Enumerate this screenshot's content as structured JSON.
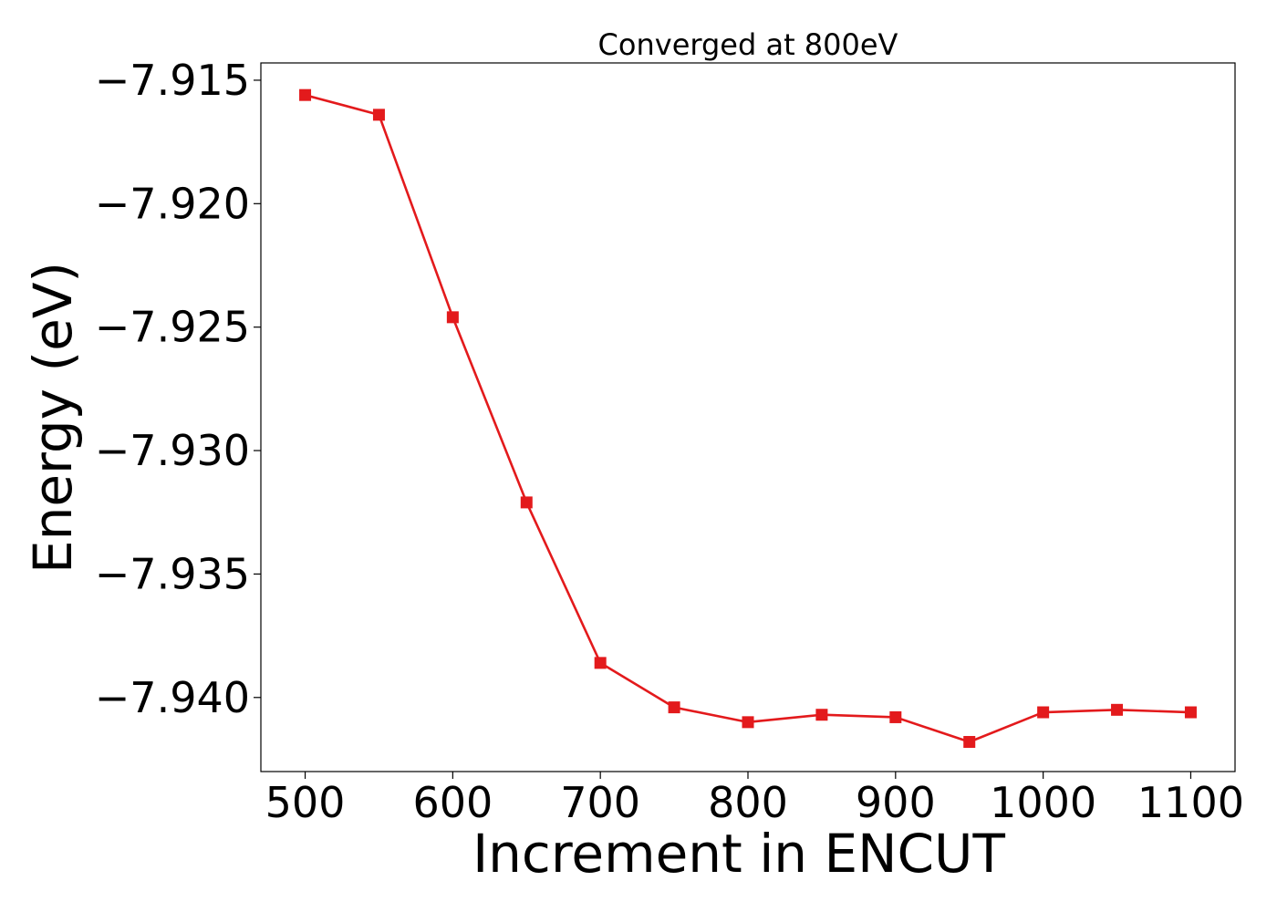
{
  "chart_data": {
    "type": "line",
    "title": "Converged at 800eV",
    "xlabel": "Increment in ENCUT",
    "ylabel": "Energy (eV)",
    "x": [
      500,
      550,
      600,
      650,
      700,
      750,
      800,
      850,
      900,
      950,
      1000,
      1050,
      1100
    ],
    "series": [
      {
        "values": [
          -7.9156,
          -7.9164,
          -7.9246,
          -7.9321,
          -7.9386,
          -7.9404,
          -7.941,
          -7.9407,
          -7.9408,
          -7.9418,
          -7.9406,
          -7.9405,
          -7.9406
        ],
        "color": "#e31a1c",
        "marker": "square"
      }
    ],
    "xlim": [
      470,
      1130
    ],
    "ylim": [
      -7.943,
      -7.9143
    ],
    "xticks": [
      500,
      600,
      700,
      800,
      900,
      1000,
      1100
    ],
    "xtick_labels": [
      "500",
      "600",
      "700",
      "800",
      "900",
      "1000",
      "1100"
    ],
    "yticks": [
      -7.915,
      -7.92,
      -7.925,
      -7.93,
      -7.935,
      -7.94
    ],
    "ytick_labels": [
      "−7.915",
      "−7.920",
      "−7.925",
      "−7.930",
      "−7.935",
      "−7.940"
    ],
    "grid": false,
    "legend": "none"
  }
}
